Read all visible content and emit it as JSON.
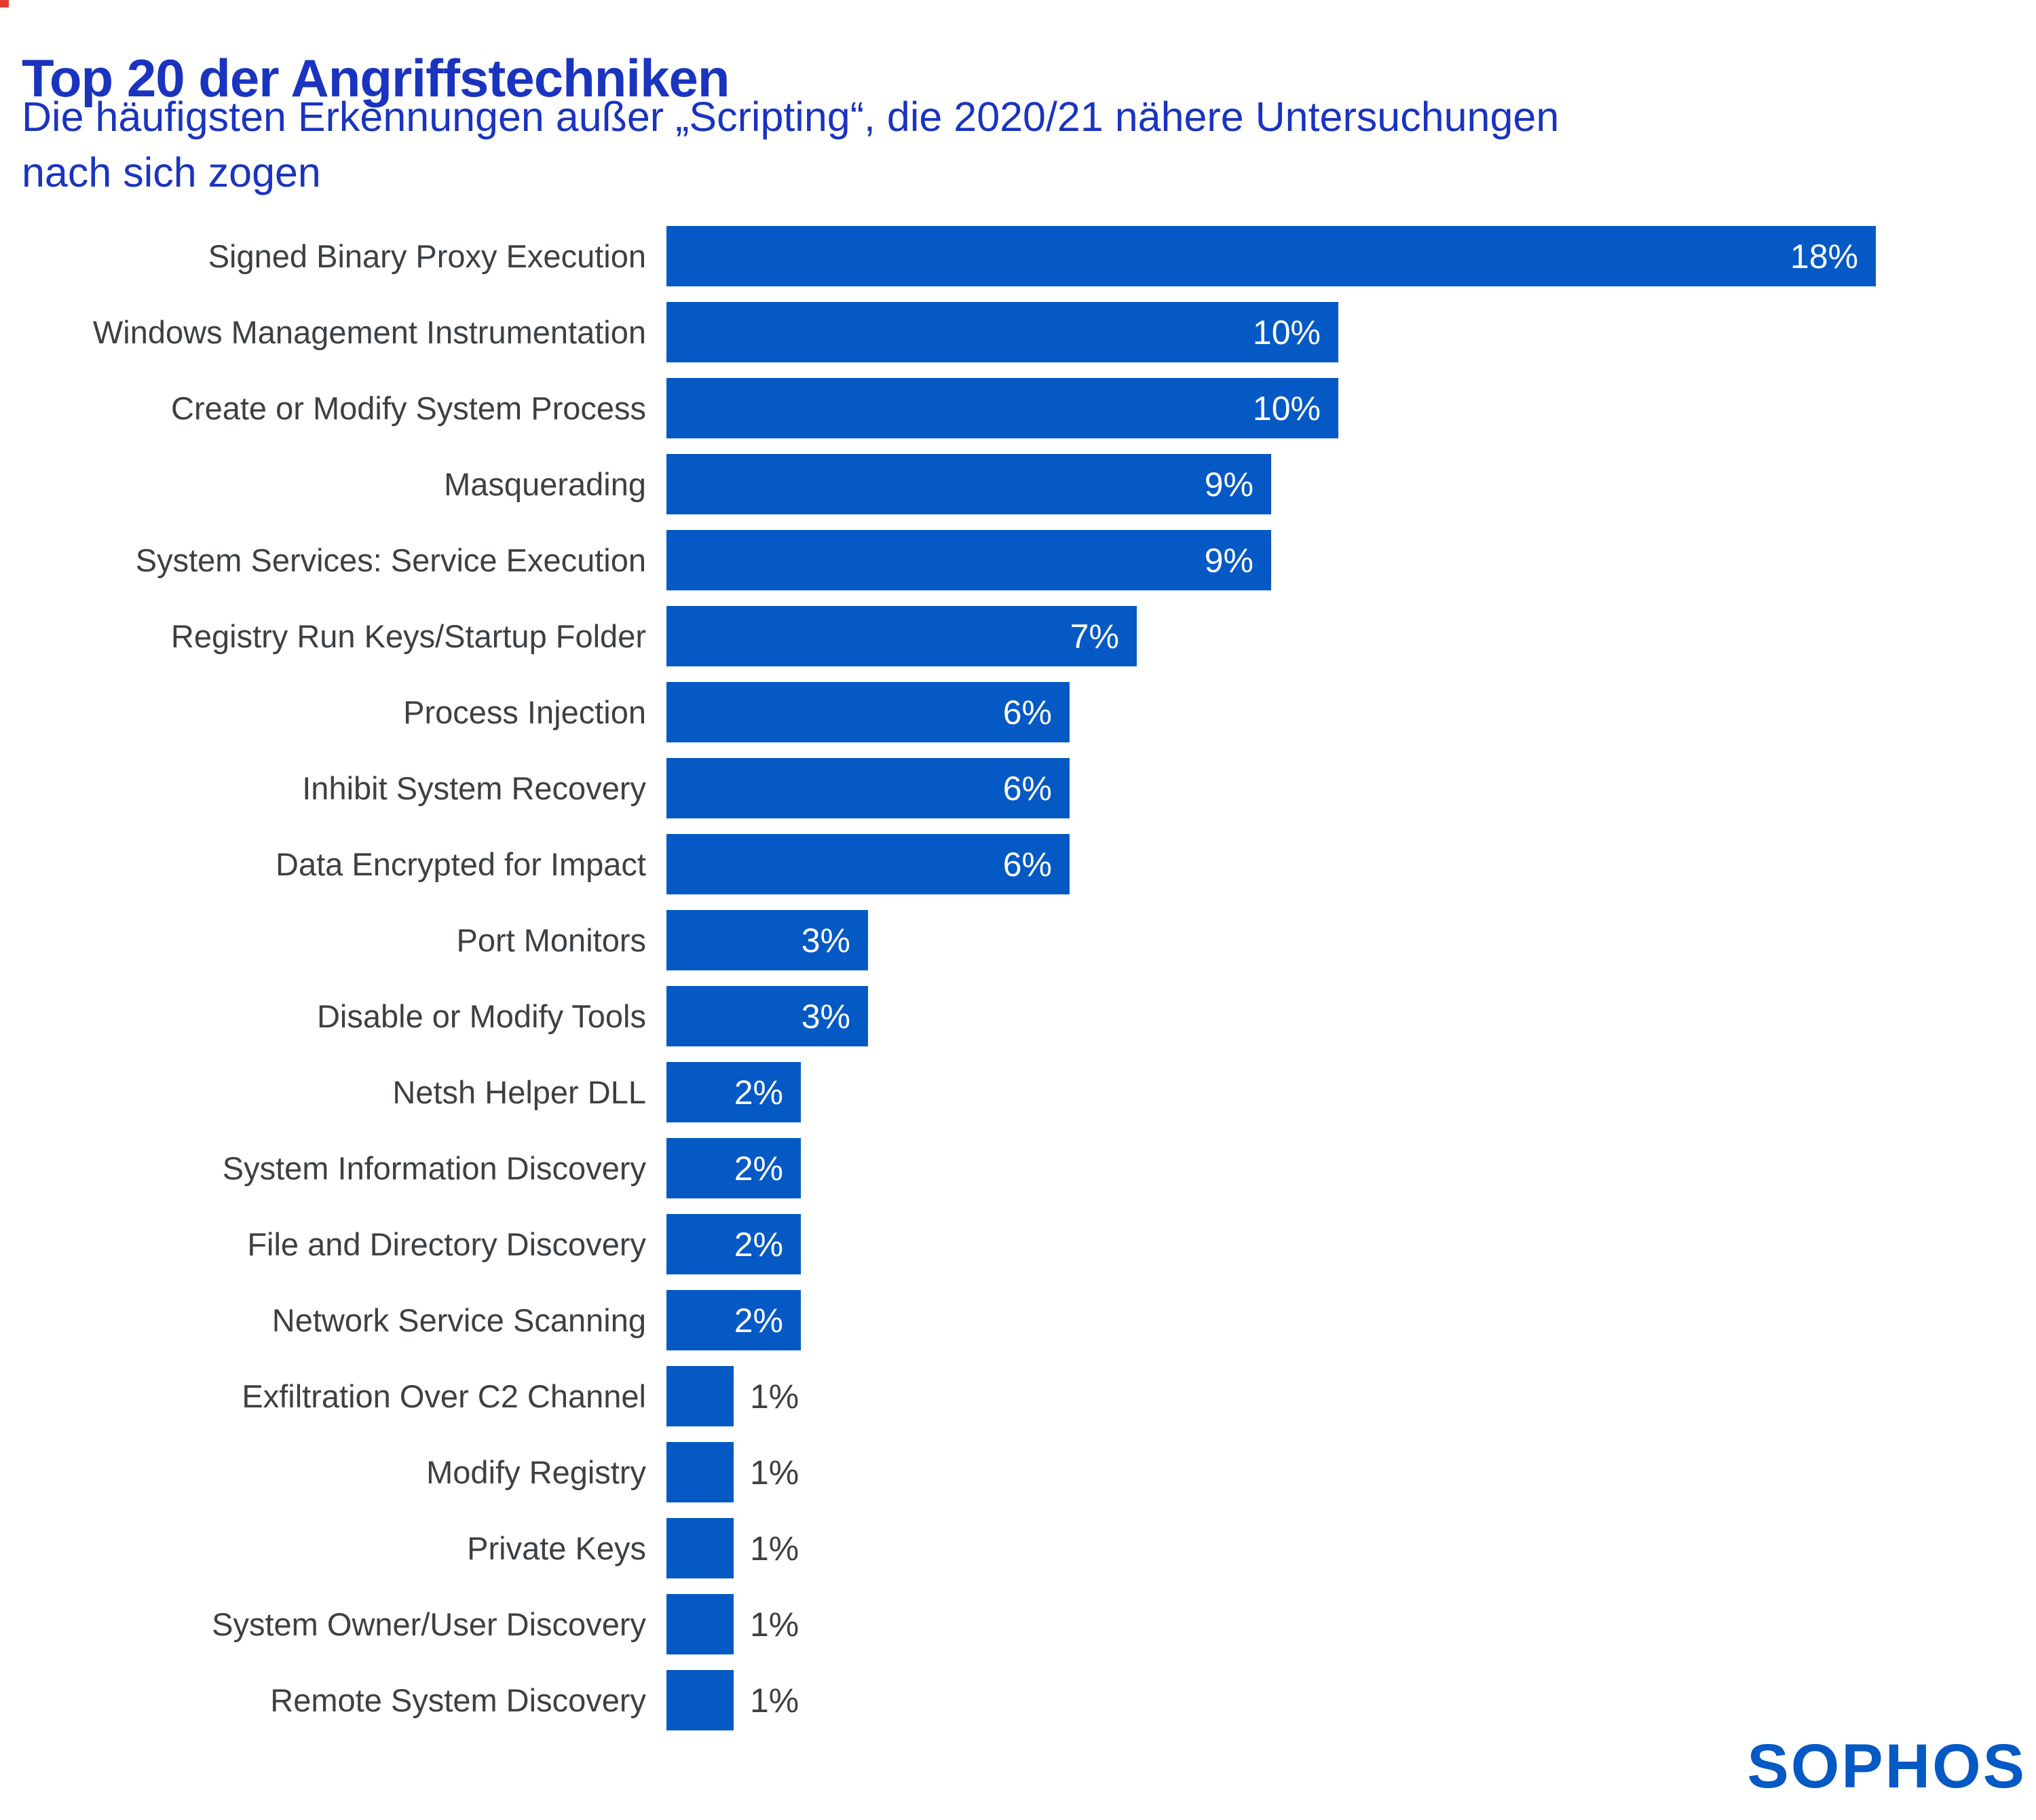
{
  "header": {
    "title": "Top 20 der Angriffstechniken",
    "subtitle_lines": [
      "Die häufigsten Erkennungen außer „Scripting“, die 2020/21 nähere Untersuchungen",
      "nach sich zogen"
    ]
  },
  "branding": {
    "logo_text": "SOPHOS"
  },
  "colors": {
    "header_blue": "#1a34bf",
    "bar_blue": "#0459c4",
    "logo_blue": "#0459c4",
    "label_gray": "#3c4043",
    "value_white": "#ffffff",
    "artifact_red": "#e03c31"
  },
  "chart_data": {
    "type": "bar",
    "orientation": "horizontal",
    "title": "Top 20 der Angriffstechniken",
    "subtitle": "Die häufigsten Erkennungen außer „Scripting“, die 2020/21 nähere Untersuchungen nach sich zogen",
    "unit": "%",
    "xlim": [
      0,
      20
    ],
    "grid": false,
    "legend": false,
    "axes_visible": false,
    "categories": [
      "Signed Binary Proxy Execution",
      "Windows Management Instrumentation",
      "Create or Modify System Process",
      "Masquerading",
      "System Services: Service Execution",
      "Registry Run Keys/Startup Folder",
      "Process Injection",
      "Inhibit System Recovery",
      "Data Encrypted for Impact",
      "Port Monitors",
      "Disable or Modify Tools",
      "Netsh Helper DLL",
      "System Information Discovery",
      "File and Directory Discovery",
      "Network Service Scanning",
      "Exfiltration Over C2 Channel",
      "Modify Registry",
      "Private Keys",
      "System Owner/User Discovery",
      "Remote System Discovery"
    ],
    "values": [
      18,
      10,
      10,
      9,
      9,
      7,
      6,
      6,
      6,
      3,
      3,
      2,
      2,
      2,
      2,
      1,
      1,
      1,
      1,
      1
    ],
    "value_labels": [
      "18%",
      "10%",
      "10%",
      "9%",
      "9%",
      "7%",
      "6%",
      "6%",
      "6%",
      "3%",
      "3%",
      "2%",
      "2%",
      "2%",
      "2%",
      "1%",
      "1%",
      "1%",
      "1%",
      "1%"
    ]
  }
}
